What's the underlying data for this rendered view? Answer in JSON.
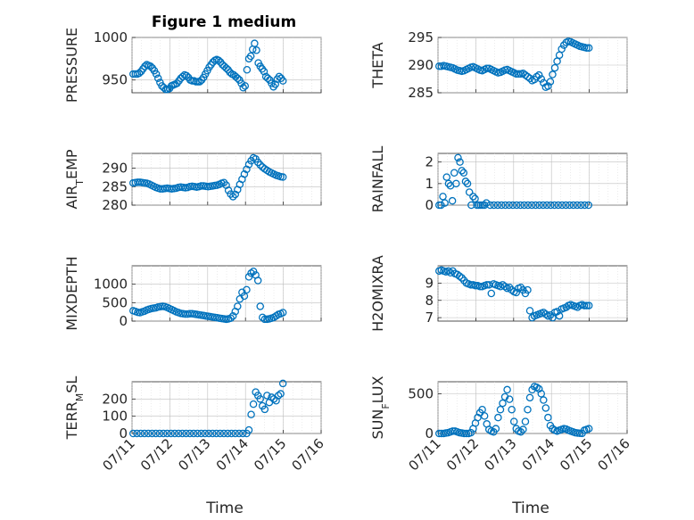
{
  "figure": {
    "title": "Figure 1 medium",
    "x_label": "Time",
    "marker_color": "#0072BD"
  },
  "chart_data": [
    {
      "type": "scatter",
      "ylabel": "PRESSURE",
      "ylim": [
        935,
        1000
      ],
      "yticks": [
        950,
        1000
      ],
      "xlim": [
        0,
        5
      ],
      "xticks": [
        0,
        1,
        2,
        3,
        4,
        5
      ],
      "xtick_labels": [],
      "x": [
        0.03,
        0.09,
        0.14,
        0.19,
        0.24,
        0.29,
        0.34,
        0.39,
        0.44,
        0.49,
        0.54,
        0.59,
        0.64,
        0.69,
        0.74,
        0.79,
        0.84,
        0.89,
        0.94,
        0.99,
        1.04,
        1.09,
        1.14,
        1.19,
        1.24,
        1.29,
        1.34,
        1.39,
        1.44,
        1.49,
        1.54,
        1.59,
        1.64,
        1.69,
        1.74,
        1.79,
        1.84,
        1.89,
        1.94,
        1.99,
        2.04,
        2.09,
        2.14,
        2.19,
        2.24,
        2.29,
        2.34,
        2.39,
        2.44,
        2.49,
        2.54,
        2.59,
        2.64,
        2.69,
        2.74,
        2.79,
        2.84,
        2.89,
        2.94,
        2.99,
        3.04,
        3.09,
        3.14,
        3.19,
        3.24,
        3.29,
        3.34,
        3.39,
        3.44,
        3.49,
        3.54,
        3.59,
        3.64,
        3.69,
        3.74,
        3.79,
        3.84,
        3.89,
        3.94,
        3.99
      ],
      "y": [
        957,
        957,
        957,
        958,
        960,
        963,
        966,
        968,
        967,
        966,
        964,
        961,
        957,
        952,
        947,
        943,
        941,
        939,
        939,
        940,
        943,
        944,
        945,
        946,
        949,
        952,
        954,
        956,
        955,
        953,
        950,
        949,
        949,
        948,
        948,
        948,
        950,
        953,
        957,
        961,
        965,
        968,
        971,
        973,
        974,
        973,
        971,
        968,
        966,
        964,
        962,
        959,
        957,
        956,
        954,
        952,
        950,
        946,
        941,
        943,
        962,
        975,
        978,
        986,
        993,
        985,
        970,
        966,
        963,
        960,
        954,
        952,
        950,
        946,
        942,
        945,
        951,
        954,
        952,
        949
      ]
    },
    {
      "type": "scatter",
      "ylabel": "THETA",
      "ylim": [
        285,
        295
      ],
      "yticks": [
        285,
        290,
        295
      ],
      "xlim": [
        0,
        5
      ],
      "xticks": [
        0,
        1,
        2,
        3,
        4,
        5
      ],
      "xtick_labels": [],
      "x": [
        0.03,
        0.09,
        0.15,
        0.21,
        0.27,
        0.33,
        0.39,
        0.45,
        0.51,
        0.57,
        0.63,
        0.69,
        0.75,
        0.81,
        0.87,
        0.93,
        0.99,
        1.05,
        1.11,
        1.17,
        1.23,
        1.29,
        1.35,
        1.41,
        1.47,
        1.53,
        1.59,
        1.65,
        1.71,
        1.77,
        1.83,
        1.89,
        1.95,
        2.01,
        2.07,
        2.13,
        2.19,
        2.25,
        2.31,
        2.37,
        2.43,
        2.49,
        2.55,
        2.61,
        2.67,
        2.73,
        2.79,
        2.85,
        2.91,
        2.97,
        3.03,
        3.09,
        3.15,
        3.21,
        3.27,
        3.33,
        3.39,
        3.45,
        3.51,
        3.57,
        3.63,
        3.69,
        3.75,
        3.81,
        3.87,
        3.93,
        3.99
      ],
      "y": [
        289.8,
        289.8,
        289.9,
        289.8,
        289.7,
        289.6,
        289.5,
        289.3,
        289.1,
        289.0,
        288.9,
        289.0,
        289.2,
        289.4,
        289.6,
        289.7,
        289.5,
        289.3,
        289.1,
        289.0,
        289.2,
        289.4,
        289.4,
        289.2,
        289.0,
        288.8,
        288.6,
        288.7,
        288.9,
        289.1,
        289.2,
        289.0,
        288.8,
        288.6,
        288.4,
        288.4,
        288.4,
        288.5,
        288.2,
        287.9,
        287.6,
        287.2,
        287.4,
        287.9,
        288.2,
        287.5,
        286.8,
        286.0,
        286.2,
        287.0,
        288.3,
        289.5,
        290.7,
        291.8,
        292.9,
        293.6,
        294.1,
        294.3,
        294.2,
        294.0,
        293.8,
        293.6,
        293.4,
        293.3,
        293.2,
        293.1,
        293.1
      ]
    },
    {
      "type": "scatter",
      "ylabel": "AIR_TEMP",
      "ylim": [
        280,
        294
      ],
      "yticks": [
        280,
        285,
        290
      ],
      "xlim": [
        0,
        5
      ],
      "xticks": [
        0,
        1,
        2,
        3,
        4,
        5
      ],
      "xtick_labels": [],
      "x": [
        0.03,
        0.09,
        0.15,
        0.21,
        0.27,
        0.33,
        0.39,
        0.45,
        0.51,
        0.57,
        0.63,
        0.69,
        0.75,
        0.81,
        0.87,
        0.93,
        0.99,
        1.05,
        1.11,
        1.17,
        1.23,
        1.29,
        1.35,
        1.41,
        1.47,
        1.53,
        1.59,
        1.65,
        1.71,
        1.77,
        1.83,
        1.89,
        1.95,
        2.01,
        2.07,
        2.13,
        2.19,
        2.25,
        2.31,
        2.37,
        2.43,
        2.49,
        2.55,
        2.61,
        2.67,
        2.73,
        2.79,
        2.85,
        2.91,
        2.97,
        3.03,
        3.09,
        3.15,
        3.21,
        3.27,
        3.33,
        3.39,
        3.45,
        3.51,
        3.57,
        3.63,
        3.69,
        3.75,
        3.81,
        3.87,
        3.93,
        3.99
      ],
      "y": [
        286.0,
        286.1,
        286.2,
        286.2,
        286.1,
        286.0,
        285.9,
        285.7,
        285.4,
        285.1,
        284.8,
        284.6,
        284.4,
        284.4,
        284.5,
        284.6,
        284.5,
        284.4,
        284.5,
        284.6,
        284.8,
        284.9,
        284.8,
        284.7,
        284.8,
        285.0,
        285.1,
        285.0,
        284.9,
        285.0,
        285.2,
        285.2,
        285.1,
        285.0,
        285.1,
        285.2,
        285.3,
        285.4,
        285.6,
        285.9,
        286.1,
        285.4,
        284.0,
        283.0,
        282.3,
        282.9,
        284.2,
        285.6,
        287.0,
        288.4,
        289.7,
        291.0,
        292.0,
        292.8,
        292.5,
        291.6,
        290.9,
        290.3,
        289.8,
        289.4,
        289.0,
        288.7,
        288.4,
        288.1,
        287.9,
        287.7,
        287.6
      ]
    },
    {
      "type": "scatter",
      "ylabel": "RAINFALL",
      "ylim": [
        0,
        2.4
      ],
      "yticks": [
        0,
        1,
        2
      ],
      "xlim": [
        0,
        5
      ],
      "xticks": [
        0,
        1,
        2,
        3,
        4,
        5
      ],
      "xtick_labels": [],
      "x": [
        0.03,
        0.08,
        0.13,
        0.18,
        0.23,
        0.28,
        0.33,
        0.38,
        0.43,
        0.48,
        0.53,
        0.58,
        0.63,
        0.68,
        0.73,
        0.78,
        0.83,
        0.88,
        0.93,
        0.98,
        1.03,
        1.08,
        1.13,
        1.18,
        1.23,
        1.28,
        1.38,
        1.48,
        1.58,
        1.68,
        1.78,
        1.88,
        1.98,
        2.08,
        2.18,
        2.28,
        2.38,
        2.48,
        2.58,
        2.68,
        2.78,
        2.88,
        2.98,
        3.08,
        3.18,
        3.28,
        3.38,
        3.48,
        3.58,
        3.68,
        3.78,
        3.88,
        3.98
      ],
      "y": [
        0,
        0,
        0.4,
        0.1,
        1.3,
        1.0,
        0.9,
        0.2,
        1.5,
        1.0,
        2.2,
        2.0,
        1.6,
        1.5,
        1.1,
        1.0,
        0.6,
        0,
        0.4,
        0.3,
        0,
        0,
        0,
        0,
        0,
        0.1,
        0,
        0,
        0,
        0,
        0,
        0,
        0,
        0,
        0,
        0,
        0,
        0,
        0,
        0,
        0,
        0,
        0,
        0,
        0,
        0,
        0,
        0,
        0,
        0,
        0,
        0,
        0
      ]
    },
    {
      "type": "scatter",
      "ylabel": "MIXDEPTH",
      "ylim": [
        0,
        1500
      ],
      "yticks": [
        0,
        500,
        1000
      ],
      "xlim": [
        0,
        5
      ],
      "xticks": [
        0,
        1,
        2,
        3,
        4,
        5
      ],
      "xtick_labels": [],
      "x": [
        0.03,
        0.09,
        0.15,
        0.21,
        0.27,
        0.33,
        0.39,
        0.45,
        0.51,
        0.57,
        0.63,
        0.69,
        0.75,
        0.81,
        0.87,
        0.93,
        0.99,
        1.05,
        1.11,
        1.17,
        1.23,
        1.29,
        1.35,
        1.41,
        1.47,
        1.53,
        1.59,
        1.65,
        1.71,
        1.77,
        1.83,
        1.89,
        1.95,
        2.01,
        2.07,
        2.13,
        2.19,
        2.25,
        2.31,
        2.37,
        2.43,
        2.49,
        2.55,
        2.61,
        2.67,
        2.73,
        2.79,
        2.85,
        2.91,
        2.97,
        3.03,
        3.09,
        3.15,
        3.21,
        3.27,
        3.33,
        3.39,
        3.45,
        3.51,
        3.57,
        3.63,
        3.69,
        3.75,
        3.81,
        3.87,
        3.93,
        3.99
      ],
      "y": [
        280,
        260,
        240,
        230,
        250,
        270,
        300,
        320,
        340,
        350,
        360,
        380,
        390,
        400,
        390,
        370,
        340,
        310,
        280,
        250,
        230,
        210,
        200,
        190,
        190,
        200,
        200,
        190,
        180,
        170,
        160,
        150,
        140,
        130,
        120,
        110,
        100,
        90,
        80,
        70,
        60,
        50,
        60,
        80,
        140,
        260,
        400,
        600,
        780,
        680,
        850,
        1200,
        1300,
        1350,
        1250,
        1100,
        400,
        100,
        50,
        50,
        60,
        80,
        100,
        140,
        180,
        200,
        230
      ]
    },
    {
      "type": "scatter",
      "ylabel": "H2OMIXRA",
      "ylim": [
        6.8,
        10.0
      ],
      "yticks": [
        7,
        8,
        9
      ],
      "xlim": [
        0,
        5
      ],
      "xticks": [
        0,
        1,
        2,
        3,
        4,
        5
      ],
      "xtick_labels": [],
      "x": [
        0.03,
        0.09,
        0.15,
        0.21,
        0.27,
        0.33,
        0.39,
        0.45,
        0.51,
        0.57,
        0.63,
        0.69,
        0.75,
        0.81,
        0.87,
        0.93,
        0.99,
        1.05,
        1.11,
        1.17,
        1.23,
        1.29,
        1.35,
        1.41,
        1.47,
        1.53,
        1.59,
        1.65,
        1.71,
        1.77,
        1.83,
        1.89,
        1.95,
        2.01,
        2.07,
        2.13,
        2.19,
        2.25,
        2.31,
        2.37,
        2.43,
        2.49,
        2.55,
        2.61,
        2.67,
        2.73,
        2.79,
        2.85,
        2.91,
        2.97,
        3.03,
        3.09,
        3.15,
        3.21,
        3.27,
        3.33,
        3.39,
        3.45,
        3.51,
        3.57,
        3.63,
        3.69,
        3.75,
        3.81,
        3.87,
        3.93,
        3.99
      ],
      "y": [
        9.7,
        9.75,
        9.7,
        9.65,
        9.7,
        9.6,
        9.7,
        9.55,
        9.5,
        9.4,
        9.3,
        9.15,
        9.0,
        8.95,
        8.9,
        8.9,
        8.85,
        8.85,
        8.8,
        8.8,
        8.85,
        8.9,
        8.9,
        8.4,
        8.95,
        8.9,
        8.85,
        8.8,
        8.9,
        8.8,
        8.7,
        8.75,
        8.6,
        8.5,
        8.45,
        8.7,
        8.75,
        8.6,
        8.4,
        8.6,
        7.4,
        7.0,
        7.1,
        7.15,
        7.2,
        7.25,
        7.3,
        7.2,
        7.1,
        7.15,
        7.0,
        7.3,
        7.35,
        7.1,
        7.5,
        7.55,
        7.6,
        7.7,
        7.75,
        7.7,
        7.65,
        7.6,
        7.7,
        7.75,
        7.7,
        7.7,
        7.7
      ]
    },
    {
      "type": "scatter",
      "ylabel": "TERR_MSL",
      "ylim": [
        0,
        300
      ],
      "yticks": [
        0,
        100,
        200
      ],
      "xlim": [
        0,
        5
      ],
      "xticks": [
        0,
        1,
        2,
        3,
        4,
        5
      ],
      "xtick_labels": [
        "07/11",
        "07/12",
        "07/13",
        "07/14",
        "07/15",
        "07/16"
      ],
      "x": [
        0.03,
        0.13,
        0.23,
        0.33,
        0.43,
        0.53,
        0.63,
        0.73,
        0.83,
        0.93,
        1.03,
        1.13,
        1.23,
        1.33,
        1.43,
        1.53,
        1.63,
        1.73,
        1.83,
        1.93,
        2.03,
        2.13,
        2.23,
        2.33,
        2.43,
        2.53,
        2.63,
        2.73,
        2.83,
        2.93,
        3.03,
        3.09,
        3.15,
        3.21,
        3.27,
        3.33,
        3.39,
        3.45,
        3.51,
        3.57,
        3.63,
        3.69,
        3.75,
        3.81,
        3.87,
        3.93,
        3.99
      ],
      "y": [
        0,
        0,
        0,
        0,
        0,
        0,
        0,
        0,
        0,
        0,
        0,
        0,
        0,
        0,
        0,
        0,
        0,
        0,
        0,
        0,
        0,
        0,
        0,
        0,
        0,
        0,
        0,
        0,
        0,
        0,
        0,
        20,
        110,
        170,
        240,
        220,
        200,
        160,
        140,
        220,
        180,
        210,
        200,
        190,
        220,
        230,
        290
      ]
    },
    {
      "type": "scatter",
      "ylabel": "SUN_FLUX",
      "ylim": [
        0,
        650
      ],
      "yticks": [
        0,
        500
      ],
      "xlim": [
        0,
        5
      ],
      "xticks": [
        0,
        1,
        2,
        3,
        4,
        5
      ],
      "xtick_labels": [
        "07/11",
        "07/12",
        "07/13",
        "07/14",
        "07/15",
        "07/16"
      ],
      "x": [
        0.03,
        0.09,
        0.15,
        0.21,
        0.27,
        0.33,
        0.39,
        0.45,
        0.51,
        0.57,
        0.63,
        0.69,
        0.75,
        0.81,
        0.87,
        0.93,
        0.99,
        1.05,
        1.11,
        1.17,
        1.23,
        1.29,
        1.35,
        1.41,
        1.47,
        1.53,
        1.59,
        1.65,
        1.71,
        1.77,
        1.83,
        1.89,
        1.95,
        2.01,
        2.07,
        2.13,
        2.19,
        2.25,
        2.31,
        2.37,
        2.43,
        2.49,
        2.55,
        2.61,
        2.67,
        2.73,
        2.79,
        2.85,
        2.91,
        2.97,
        3.03,
        3.09,
        3.15,
        3.21,
        3.27,
        3.33,
        3.39,
        3.45,
        3.51,
        3.57,
        3.63,
        3.69,
        3.75,
        3.81,
        3.87,
        3.93,
        3.99
      ],
      "y": [
        0,
        0,
        0,
        5,
        10,
        20,
        30,
        30,
        20,
        10,
        5,
        0,
        0,
        0,
        10,
        60,
        130,
        200,
        260,
        300,
        220,
        120,
        50,
        30,
        20,
        60,
        200,
        300,
        380,
        460,
        550,
        430,
        300,
        150,
        60,
        30,
        20,
        50,
        150,
        300,
        450,
        550,
        590,
        580,
        560,
        500,
        420,
        320,
        200,
        100,
        60,
        40,
        30,
        40,
        50,
        60,
        55,
        40,
        30,
        20,
        10,
        5,
        3,
        2,
        40,
        50,
        60
      ]
    }
  ]
}
